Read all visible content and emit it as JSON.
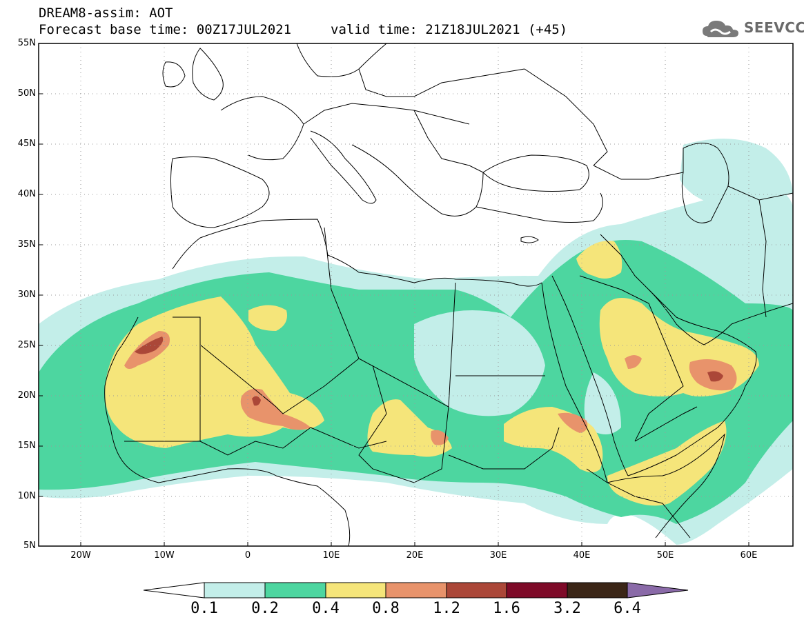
{
  "header": {
    "title": "DREAM8-assim: AOT",
    "base_time": "Forecast base time: 00Z17JUL2021",
    "valid_time": "valid time: 21Z18JUL2021 (+45)"
  },
  "logo": {
    "text": "SEEVCCC",
    "icon": "cloud-icon"
  },
  "map": {
    "projection": "lat-lon",
    "lon_range": [
      -25,
      65
    ],
    "lat_range": [
      5,
      55
    ],
    "lat_labels": [
      "55N",
      "50N",
      "45N",
      "40N",
      "35N",
      "30N",
      "25N",
      "20N",
      "15N",
      "10N",
      "5N"
    ],
    "lon_labels": [
      "20W",
      "10W",
      "0",
      "10E",
      "20E",
      "30E",
      "40E",
      "50E",
      "60E"
    ],
    "grid": "dotted"
  },
  "colorbar": {
    "levels": [
      "0.1",
      "0.2",
      "0.4",
      "0.8",
      "1.2",
      "1.6",
      "3.2",
      "6.4"
    ],
    "colors": [
      "#ffffff",
      "#c3eee9",
      "#4dd6a0",
      "#f5e57a",
      "#e8936b",
      "#ab4738",
      "#7e0a28",
      "#3b2617",
      "#8a6aa8"
    ]
  }
}
